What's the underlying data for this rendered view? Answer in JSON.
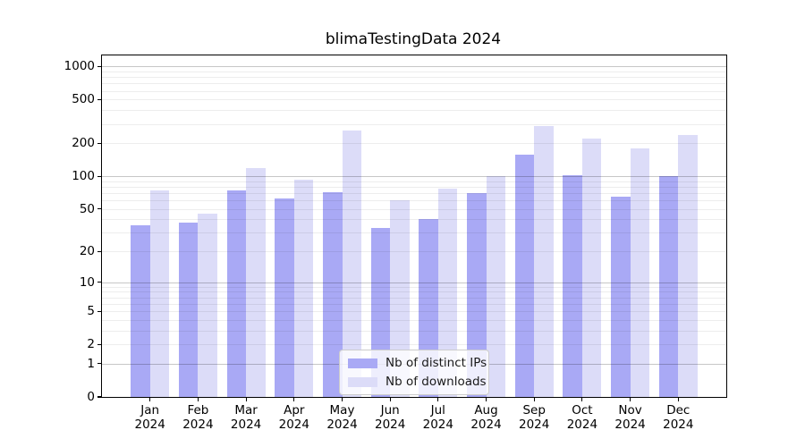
{
  "title": "blimaTestingData 2024",
  "chart_data": {
    "type": "bar",
    "title": "blimaTestingData 2024",
    "categories": [
      {
        "month": "Jan",
        "year": "2024"
      },
      {
        "month": "Feb",
        "year": "2024"
      },
      {
        "month": "Mar",
        "year": "2024"
      },
      {
        "month": "Apr",
        "year": "2024"
      },
      {
        "month": "May",
        "year": "2024"
      },
      {
        "month": "Jun",
        "year": "2024"
      },
      {
        "month": "Jul",
        "year": "2024"
      },
      {
        "month": "Aug",
        "year": "2024"
      },
      {
        "month": "Sep",
        "year": "2024"
      },
      {
        "month": "Oct",
        "year": "2024"
      },
      {
        "month": "Nov",
        "year": "2024"
      },
      {
        "month": "Dec",
        "year": "2024"
      }
    ],
    "series": [
      {
        "name": "Nb of distinct IPs",
        "key": "distinct-ips",
        "color": "#a9a9f5",
        "values": [
          35,
          37,
          74,
          62,
          71,
          33,
          40,
          70,
          158,
          102,
          65,
          100
        ]
      },
      {
        "name": "Nb of downloads",
        "key": "downloads",
        "color": "#dcdcf8",
        "values": [
          74,
          45,
          118,
          93,
          260,
          60,
          77,
          100,
          290,
          222,
          180,
          238
        ]
      }
    ],
    "yscale": "log1p",
    "yticks": [
      1000,
      500,
      200,
      100,
      50,
      20,
      10,
      5,
      2,
      1,
      0
    ],
    "major_gridline_values": [
      1,
      10,
      100,
      1000
    ],
    "ylim": [
      0,
      1260
    ],
    "xlabel": "",
    "ylabel": "",
    "grid": true,
    "legend_position": "lower-center"
  }
}
